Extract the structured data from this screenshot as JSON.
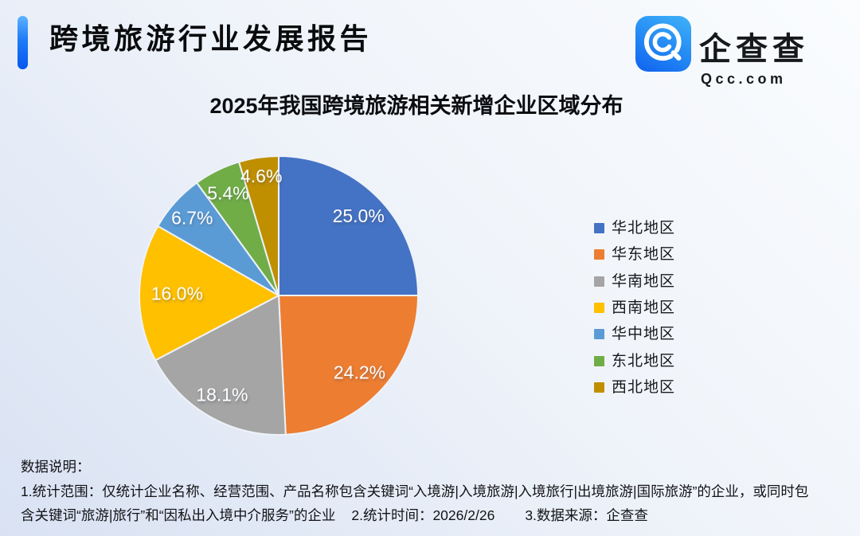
{
  "header": {
    "report_title": "跨境旅游行业发展报告",
    "logo": {
      "name": "企查查",
      "domain": "Qcc.com",
      "icon_color_top": "#3fb2f8",
      "icon_color_bottom": "#0f62ee"
    }
  },
  "chart_data": {
    "type": "pie",
    "title": "2025年我国跨境旅游相关新增企业区域分布",
    "start_angle_deg": 0,
    "direction": "clockwise",
    "legend_position": "right",
    "label_color": "#ffffff",
    "slices": [
      {
        "label": "华北地区",
        "value": 25.0,
        "display": "25.0%",
        "color": "#4472C4"
      },
      {
        "label": "华东地区",
        "value": 24.2,
        "display": "24.2%",
        "color": "#ED7D31"
      },
      {
        "label": "华南地区",
        "value": 18.1,
        "display": "18.1%",
        "color": "#A5A5A5"
      },
      {
        "label": "西南地区",
        "value": 16.0,
        "display": "16.0%",
        "color": "#FFC000"
      },
      {
        "label": "华中地区",
        "value": 6.7,
        "display": "6.7%",
        "color": "#5B9BD5"
      },
      {
        "label": "东北地区",
        "value": 5.4,
        "display": "5.4%",
        "color": "#70AD47"
      },
      {
        "label": "西北地区",
        "value": 4.6,
        "display": "4.6%",
        "color": "#BF8F00"
      }
    ]
  },
  "footnote": {
    "heading": "数据说明：",
    "line1": "1.统计范围：仅统计企业名称、经营范围、产品名称包含关键词“入境游|入境旅游|入境旅行|出境旅游|国际旅游”的企业，或同时包",
    "line2_part1": "含关键词“旅游|旅行”和“因私出入境中介服务”的企业",
    "line2_part2": "2.统计时间：2026/2/26",
    "line2_part3": "3.数据来源：企查查"
  }
}
